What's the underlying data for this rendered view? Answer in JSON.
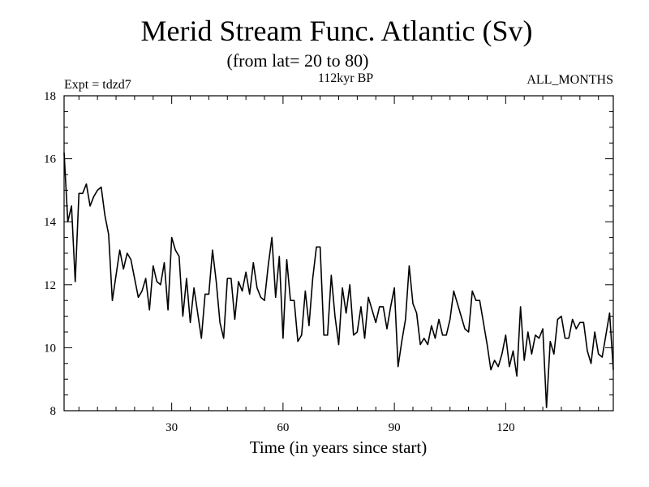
{
  "chart_data": {
    "type": "line",
    "title": "Merid Stream Func. Atlantic (Sv)",
    "subtitle": "(from lat= 20 to 80)",
    "header_left": "Expt = tdzd7",
    "header_center": "112kyr BP",
    "header_right": "ALL_MONTHS",
    "xlabel": "Time (in years since start)",
    "ylabel": "",
    "xlim": [
      1,
      149
    ],
    "ylim": [
      8,
      18
    ],
    "xticks": [
      30,
      60,
      90,
      120
    ],
    "yticks": [
      8,
      10,
      12,
      14,
      16,
      18
    ],
    "grid": false,
    "series": [
      {
        "x": [
          1,
          2,
          3,
          4,
          5,
          6,
          7,
          8,
          9,
          10,
          11,
          12,
          13,
          14,
          15,
          16,
          17,
          18,
          19,
          20,
          21,
          22,
          23,
          24,
          25,
          26,
          27,
          28,
          29,
          30,
          31,
          32,
          33,
          34,
          35,
          36,
          37,
          38,
          39,
          40,
          41,
          42,
          43,
          44,
          45,
          46,
          47,
          48,
          49,
          50,
          51,
          52,
          53,
          54,
          55,
          56,
          57,
          58,
          59,
          60,
          61,
          62,
          63,
          64,
          65,
          66,
          67,
          68,
          69,
          70,
          71,
          72,
          73,
          74,
          75,
          76,
          77,
          78,
          79,
          80,
          81,
          82,
          83,
          84,
          85,
          86,
          87,
          88,
          89,
          90,
          91,
          92,
          93,
          94,
          95,
          96,
          97,
          98,
          99,
          100,
          101,
          102,
          103,
          104,
          105,
          106,
          107,
          108,
          109,
          110,
          111,
          112,
          113,
          114,
          115,
          116,
          117,
          118,
          119,
          120,
          121,
          122,
          123,
          124,
          125,
          126,
          127,
          128,
          129,
          130,
          131,
          132,
          133,
          134,
          135,
          136,
          137,
          138,
          139,
          140,
          141,
          142,
          143,
          144,
          145,
          146,
          147,
          148,
          149
        ],
        "values": [
          16.2,
          14.0,
          14.5,
          12.1,
          14.9,
          14.9,
          15.2,
          14.5,
          14.8,
          15.0,
          15.1,
          14.2,
          13.6,
          11.5,
          12.3,
          13.1,
          12.5,
          13.0,
          12.8,
          12.2,
          11.6,
          11.8,
          12.2,
          11.2,
          12.6,
          12.1,
          12.0,
          12.7,
          11.2,
          13.5,
          13.1,
          12.9,
          11.0,
          12.2,
          10.8,
          11.9,
          11.1,
          10.3,
          11.7,
          11.7,
          13.1,
          12.1,
          10.8,
          10.3,
          12.2,
          12.2,
          10.9,
          12.1,
          11.8,
          12.4,
          11.7,
          12.7,
          11.9,
          11.6,
          11.5,
          12.6,
          13.5,
          11.6,
          12.9,
          10.3,
          12.8,
          11.5,
          11.5,
          10.2,
          10.4,
          11.8,
          10.7,
          12.2,
          13.2,
          13.2,
          10.4,
          10.4,
          12.3,
          11.0,
          10.1,
          11.9,
          11.1,
          12.0,
          10.4,
          10.5,
          11.3,
          10.3,
          11.6,
          11.2,
          10.8,
          11.3,
          11.3,
          10.6,
          11.3,
          11.9,
          9.4,
          10.2,
          10.9,
          12.6,
          11.4,
          11.1,
          10.1,
          10.3,
          10.1,
          10.7,
          10.3,
          10.9,
          10.4,
          10.4,
          10.9,
          11.8,
          11.4,
          11.0,
          10.6,
          10.5,
          11.8,
          11.5,
          11.5,
          10.8,
          10.1,
          9.3,
          9.6,
          9.4,
          9.8,
          10.4,
          9.4,
          9.9,
          9.1,
          11.3,
          9.6,
          10.5,
          9.8,
          10.4,
          10.3,
          10.6,
          8.1,
          10.2,
          9.8,
          10.9,
          11.0,
          10.3,
          10.3,
          10.9,
          10.6,
          10.8,
          10.8,
          9.9,
          9.5,
          10.5,
          9.8,
          9.7,
          10.4,
          11.1,
          9.3
        ]
      }
    ],
    "line_color": "#000000"
  }
}
